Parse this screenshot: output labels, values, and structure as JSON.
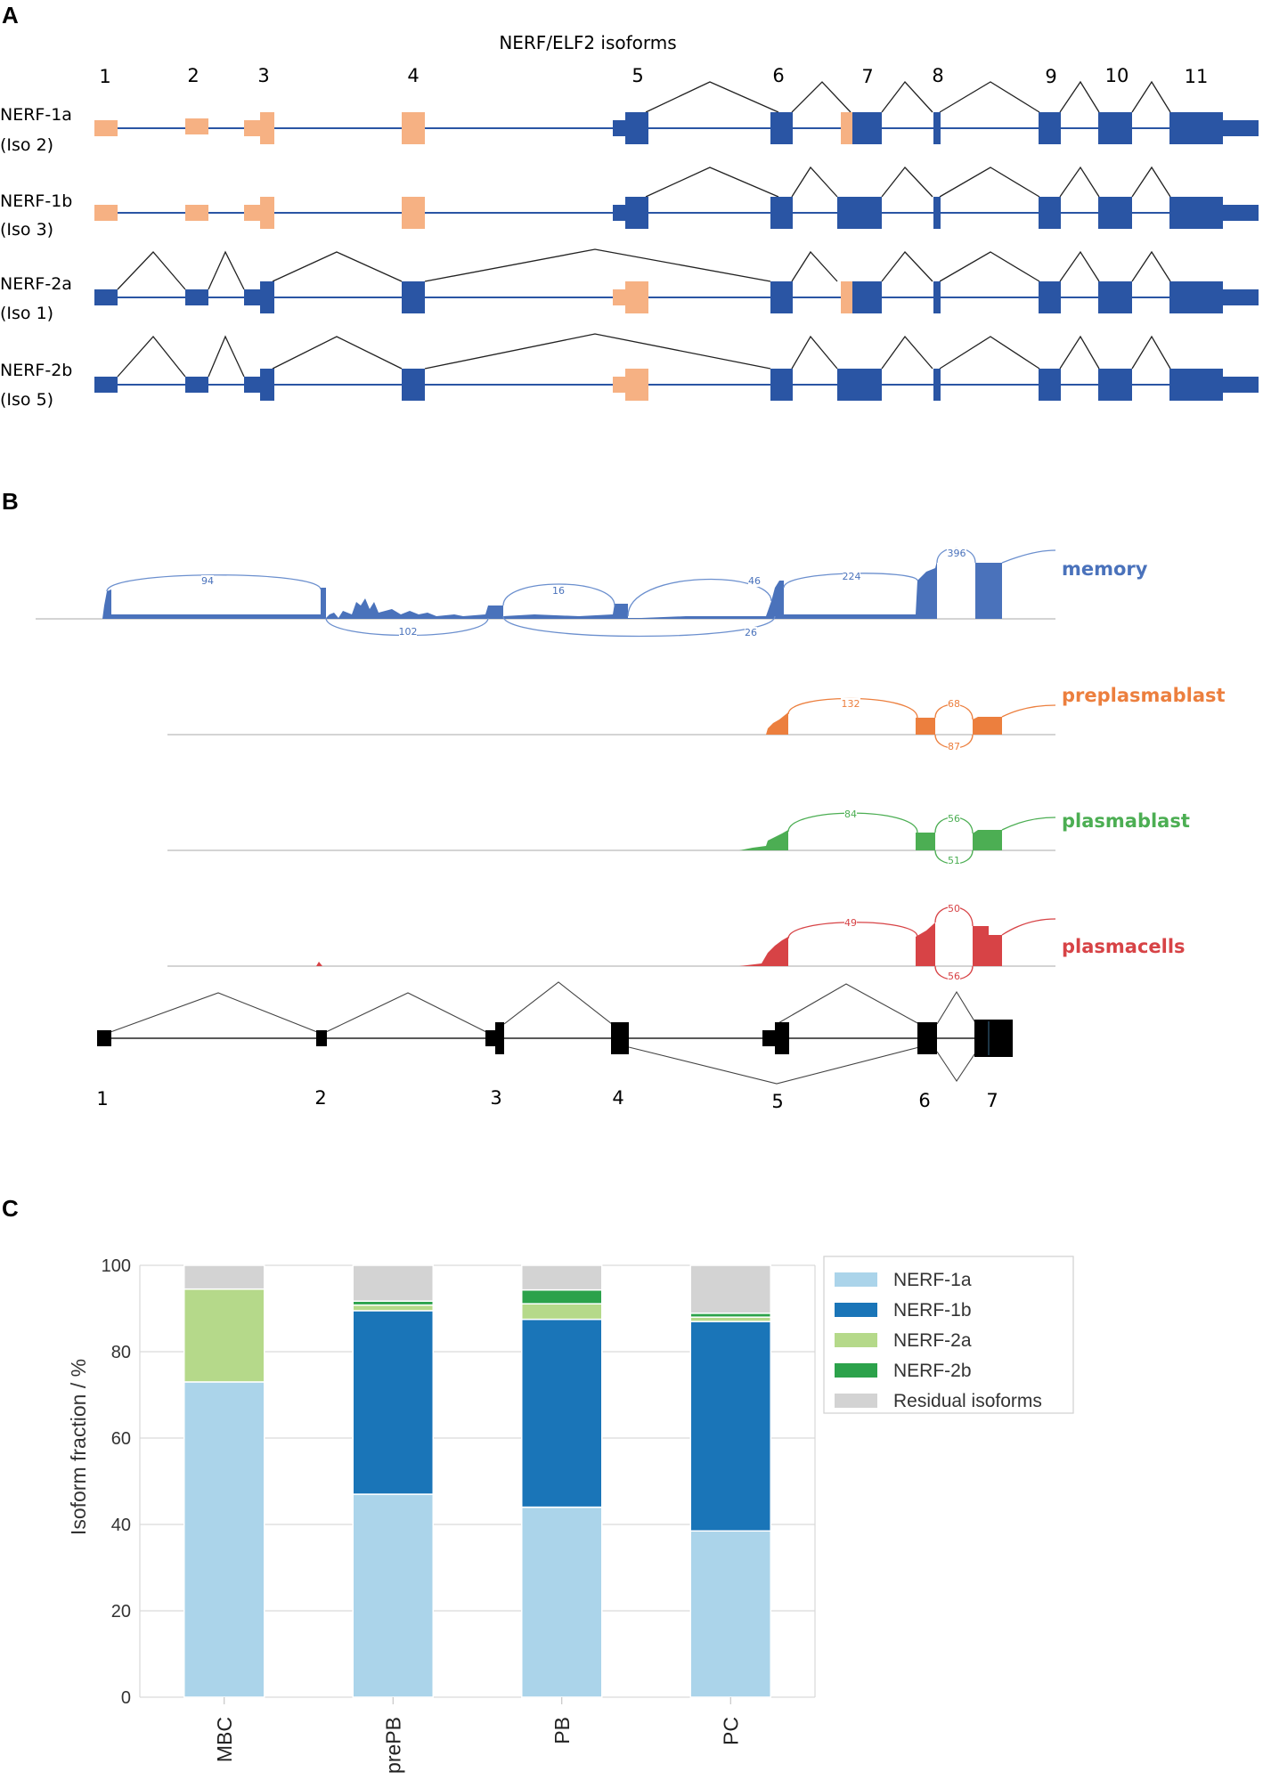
{
  "panels": {
    "a": "A",
    "b": "B",
    "c": "C"
  },
  "panel_a": {
    "title": "NERF/ELF2 isoforms",
    "exon_numbers": [
      "1",
      "2",
      "3",
      "4",
      "5",
      "6",
      "7",
      "8",
      "9",
      "10",
      "11"
    ],
    "isoforms": [
      {
        "name": "NERF-1a",
        "iso": "(Iso 2)"
      },
      {
        "name": "NERF-1b",
        "iso": "(Iso 3)"
      },
      {
        "name": "NERF-2a",
        "iso": "(Iso 1)"
      },
      {
        "name": "NERF-2b",
        "iso": "(Iso 5)"
      }
    ],
    "colors": {
      "coding": "#2a55a4",
      "noncoding": "#f6b183"
    }
  },
  "panel_b": {
    "tracks": [
      {
        "name": "memory",
        "color": "#4a72bb",
        "junctions": [
          "94",
          "102",
          "16",
          "46",
          "26",
          "224",
          "396"
        ]
      },
      {
        "name": "preplasmablast",
        "color": "#ec7f3e",
        "junctions": [
          "132",
          "68",
          "87"
        ]
      },
      {
        "name": "plasmablast",
        "color": "#4cae53",
        "junctions": [
          "84",
          "56",
          "51"
        ]
      },
      {
        "name": "plasmacells",
        "color": "#d74346",
        "junctions": [
          "49",
          "50",
          "56"
        ]
      }
    ],
    "exon_numbers": [
      "1",
      "2",
      "3",
      "4",
      "5",
      "6",
      "7"
    ]
  },
  "chart_data": {
    "type": "bar",
    "stacked": true,
    "categories": [
      "MBC",
      "prePB",
      "PB",
      "PC"
    ],
    "series": [
      {
        "name": "NERF-1a",
        "color": "#abd4ea",
        "values": [
          73,
          47,
          44,
          38.5
        ]
      },
      {
        "name": "NERF-1b",
        "color": "#1a75b8",
        "values": [
          0,
          42.5,
          43.5,
          48.5
        ]
      },
      {
        "name": "NERF-2a",
        "color": "#b5d98a",
        "values": [
          21.5,
          1.3,
          3.6,
          1.0
        ]
      },
      {
        "name": "NERF-2b",
        "color": "#2ca24b",
        "values": [
          0,
          0.9,
          3.2,
          0.9
        ]
      },
      {
        "name": "Residual isoforms",
        "color": "#d3d3d3",
        "values": [
          5.5,
          8.3,
          5.7,
          11.1
        ]
      }
    ],
    "title": "",
    "xlabel": "",
    "ylabel": "Isoform fraction / %",
    "ylim": [
      0,
      100
    ],
    "yticks": [
      "0",
      "20",
      "40",
      "60",
      "80",
      "100"
    ],
    "grid": true,
    "legend_position": "top-right"
  }
}
